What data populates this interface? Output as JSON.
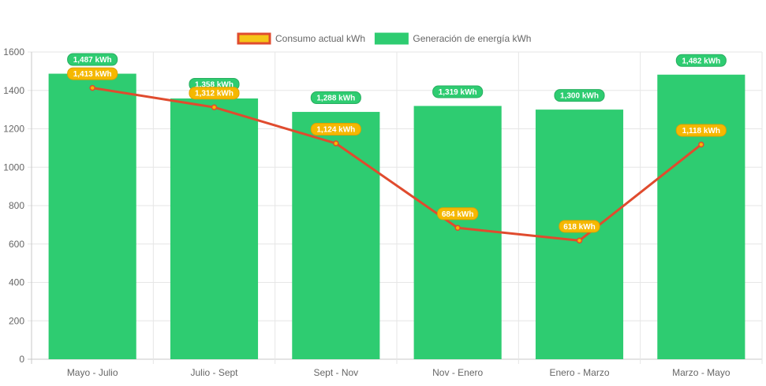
{
  "legend": {
    "items": [
      {
        "label": "Consumo actual kWh",
        "fill": "#f5c518",
        "stroke": "#e04b2e"
      },
      {
        "label": "Generación de energía kWh",
        "fill": "#2ecc71",
        "stroke": "#2ecc71"
      }
    ]
  },
  "chart_data": {
    "type": "bar",
    "categories": [
      "Mayo - Julio",
      "Julio - Sept",
      "Sept - Nov",
      "Nov - Enero",
      "Enero - Marzo",
      "Marzo - Mayo"
    ],
    "ylim": [
      0,
      1600
    ],
    "yticks": [
      0,
      200,
      400,
      600,
      800,
      1000,
      1200,
      1400,
      1600
    ],
    "ytick_labels": [
      "0",
      "200",
      "400",
      "600",
      "800",
      "1000",
      "1200",
      "1400",
      "1600"
    ],
    "grid": true,
    "legend_position": "top-center",
    "series": [
      {
        "name": "Consumo actual kWh",
        "type": "line",
        "values": [
          1413,
          1312,
          1124,
          684,
          618,
          1118
        ],
        "data_labels": [
          "1,413 kWh",
          "1,312 kWh",
          "1,124 kWh",
          "684 kWh",
          "618 kWh",
          "1,118 kWh"
        ],
        "line_color": "#e04b2e",
        "label_fill": "#f5b800",
        "label_stroke": "#e0a000"
      },
      {
        "name": "Generación de energía kWh",
        "type": "bar",
        "values": [
          1487,
          1358,
          1288,
          1319,
          1300,
          1482
        ],
        "data_labels": [
          "1,487 kWh",
          "1,358 kWh",
          "1,288 kWh",
          "1,319 kWh",
          "1,300 kWh",
          "1,482 kWh"
        ],
        "bar_color": "#2ecc71",
        "label_fill": "#2ecc71",
        "label_stroke": "#27ae60"
      }
    ]
  }
}
